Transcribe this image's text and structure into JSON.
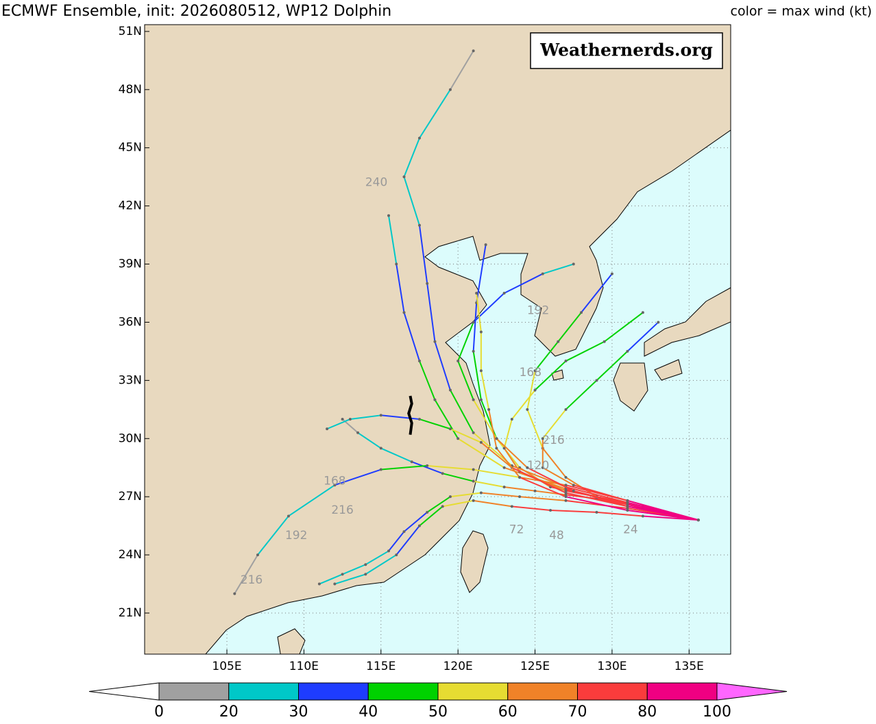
{
  "chart_data": {
    "type": "track-map",
    "title": "ECMWF Ensemble, init: 2026080512, WP12 Dolphin",
    "subtitle": "color = max wind (kt)",
    "watermark": "Weathernerds.org",
    "xlim": [
      99.66,
      137.7
    ],
    "ylim": [
      18.88,
      51.35
    ],
    "xticks": [
      {
        "value": 105,
        "label": "105E"
      },
      {
        "value": 110,
        "label": "110E"
      },
      {
        "value": 115,
        "label": "115E"
      },
      {
        "value": 120,
        "label": "120E"
      },
      {
        "value": 125,
        "label": "125E"
      },
      {
        "value": 130,
        "label": "130E"
      },
      {
        "value": 135,
        "label": "135E"
      }
    ],
    "yticks": [
      {
        "value": 21,
        "label": "21N"
      },
      {
        "value": 24,
        "label": "24N"
      },
      {
        "value": 27,
        "label": "27N"
      },
      {
        "value": 30,
        "label": "30N"
      },
      {
        "value": 33,
        "label": "33N"
      },
      {
        "value": 36,
        "label": "36N"
      },
      {
        "value": 39,
        "label": "39N"
      },
      {
        "value": 42,
        "label": "42N"
      },
      {
        "value": 45,
        "label": "45N"
      },
      {
        "value": 48,
        "label": "48N"
      },
      {
        "value": 51,
        "label": "51N"
      }
    ],
    "grid": true,
    "colorbar": {
      "ticks": [
        0,
        20,
        30,
        40,
        50,
        60,
        70,
        80,
        100
      ],
      "colors": [
        "#a0a0a0",
        "#00c8c8",
        "#1e3cff",
        "#00d200",
        "#e6dc32",
        "#f08228",
        "#fa3c3c",
        "#f00082"
      ],
      "under_color": "#ffffff",
      "over_color": "#ff66ff"
    },
    "observed": {
      "color": "#000000",
      "lon": [
        116.9,
        117.0,
        116.8,
        117.0,
        116.9
      ],
      "lat": [
        30.2,
        30.8,
        31.3,
        31.8,
        32.2
      ]
    },
    "tracks": [
      {
        "lon": [
          135.6,
          133,
          131,
          129,
          127,
          125,
          123,
          121,
          119,
          117,
          115,
          113.5,
          112.5
        ],
        "lat": [
          25.8,
          26.2,
          26.6,
          26.9,
          27.1,
          27.3,
          27.5,
          27.8,
          28.2,
          28.8,
          29.5,
          30.3,
          31.0
        ],
        "wind": [
          80,
          75,
          72,
          70,
          68,
          62,
          52,
          42,
          35,
          28,
          22,
          18,
          15
        ]
      },
      {
        "lon": [
          135.6,
          132,
          129,
          126,
          124,
          122.5,
          121.5,
          121,
          121.2,
          121.8
        ],
        "lat": [
          25.8,
          26.5,
          27,
          27.5,
          28.5,
          30,
          32,
          34.5,
          37,
          40
        ],
        "wind": [
          82,
          76,
          70,
          62,
          55,
          48,
          42,
          38,
          35,
          30
        ]
      },
      {
        "lon": [
          135.6,
          132,
          129,
          127,
          125.5,
          124.5,
          125,
          126.5,
          128,
          130
        ],
        "lat": [
          25.8,
          26.4,
          27,
          28,
          29.5,
          31.5,
          33.5,
          35,
          36.5,
          38.5
        ],
        "wind": [
          78,
          72,
          66,
          60,
          55,
          50,
          45,
          40,
          35,
          30
        ]
      },
      {
        "lon": [
          135.6,
          132,
          129,
          126,
          123.5,
          121,
          119,
          117.5,
          116,
          114,
          112
        ],
        "lat": [
          25.8,
          26,
          26.2,
          26.3,
          26.5,
          26.8,
          26.5,
          25.5,
          24,
          23,
          22.5
        ],
        "wind": [
          80,
          76,
          72,
          70,
          65,
          55,
          42,
          35,
          28,
          22,
          20
        ]
      },
      {
        "lon": [
          135.6,
          131,
          127,
          124,
          121,
          118,
          115,
          112,
          109,
          107,
          105.5
        ],
        "lat": [
          25.8,
          26.8,
          27.6,
          28,
          28.4,
          28.6,
          28.4,
          27.6,
          26,
          24,
          22
        ],
        "wind": [
          75,
          70,
          65,
          58,
          50,
          40,
          32,
          25,
          20,
          15,
          12
        ]
      },
      {
        "lon": [
          135.6,
          131,
          127,
          123,
          120,
          118.5,
          117.5,
          116.5,
          116,
          115.5
        ],
        "lat": [
          25.8,
          26.6,
          27.4,
          28.5,
          30,
          32,
          34,
          36.5,
          39,
          41.5
        ],
        "wind": [
          82,
          76,
          68,
          58,
          48,
          40,
          35,
          32,
          28,
          25
        ]
      },
      {
        "lon": [
          135.6,
          131,
          127,
          123.5,
          121,
          119.5,
          118.5,
          118,
          117.5,
          116.5,
          117.5,
          119.5,
          121
        ],
        "lat": [
          25.8,
          26.7,
          27.5,
          28.6,
          30.3,
          32.5,
          35,
          38,
          41,
          43.5,
          45.5,
          48,
          50
        ],
        "wind": [
          80,
          72,
          65,
          58,
          45,
          38,
          32,
          30,
          27,
          24,
          20,
          18,
          15
        ]
      },
      {
        "lon": [
          135.6,
          131,
          127,
          124,
          123,
          123.5,
          125,
          127,
          129.5,
          132
        ],
        "lat": [
          25.8,
          26.7,
          27.3,
          28.3,
          29.5,
          31,
          32.5,
          34,
          35,
          36.5
        ],
        "wind": [
          80,
          75,
          68,
          60,
          55,
          50,
          45,
          42,
          40,
          38
        ]
      },
      {
        "lon": [
          135.6,
          131,
          127,
          123.5,
          121.5,
          119.5,
          117.5,
          115,
          113,
          111.5
        ],
        "lat": [
          25.8,
          26.5,
          27.2,
          28.5,
          29.8,
          30.5,
          31,
          31.2,
          31,
          30.5
        ],
        "wind": [
          82,
          78,
          70,
          62,
          52,
          42,
          35,
          28,
          22,
          18
        ]
      },
      {
        "lon": [
          135.6,
          131,
          127,
          124,
          121.5,
          119.5,
          118,
          116.5,
          115.5,
          114,
          112.5,
          111
        ],
        "lat": [
          25.8,
          26.4,
          26.8,
          27,
          27.2,
          27,
          26.2,
          25.2,
          24.2,
          23.5,
          23,
          22.5
        ],
        "wind": [
          78,
          72,
          68,
          65,
          55,
          45,
          38,
          30,
          25,
          22,
          20,
          18
        ]
      },
      {
        "lon": [
          135.6,
          131,
          127.5,
          124.5,
          122.5,
          121,
          120,
          121,
          123,
          125.5,
          127.5
        ],
        "lat": [
          25.8,
          26.5,
          27.3,
          28.5,
          30,
          32,
          34,
          36,
          37.5,
          38.5,
          39
        ],
        "wind": [
          80,
          76,
          70,
          62,
          55,
          45,
          40,
          35,
          30,
          28,
          25
        ]
      },
      {
        "lon": [
          135.6,
          131,
          127,
          124,
          122.5,
          122,
          121.5,
          121.5,
          121.2
        ],
        "lat": [
          25.8,
          26.3,
          27,
          28,
          29.5,
          31.5,
          33.5,
          35.5,
          37.5
        ],
        "wind": [
          85,
          80,
          75,
          65,
          60,
          55,
          52,
          50,
          45
        ]
      },
      {
        "lon": [
          135.6,
          131,
          127.5,
          125.5,
          125.5,
          127,
          129,
          131,
          133
        ],
        "lat": [
          25.8,
          26.8,
          27.6,
          28.5,
          30,
          31.5,
          33,
          34.5,
          36
        ],
        "wind": [
          80,
          75,
          68,
          60,
          50,
          45,
          40,
          38,
          35
        ]
      }
    ],
    "hour_labels": [
      {
        "text": "240",
        "lon": 114.7,
        "lat": 43.2
      },
      {
        "text": "216",
        "lon": 106.6,
        "lat": 22.7
      },
      {
        "text": "192",
        "lon": 109.5,
        "lat": 25.0
      },
      {
        "text": "168",
        "lon": 124.7,
        "lat": 33.4
      },
      {
        "text": "120",
        "lon": 125.2,
        "lat": 28.6
      },
      {
        "text": "216",
        "lon": 126.2,
        "lat": 29.9
      },
      {
        "text": "48",
        "lon": 126.4,
        "lat": 25.0
      },
      {
        "text": "24",
        "lon": 131.2,
        "lat": 25.3
      },
      {
        "text": "72",
        "lon": 123.8,
        "lat": 25.3
      },
      {
        "text": "192",
        "lon": 125.2,
        "lat": 36.6
      },
      {
        "text": "216",
        "lon": 112.5,
        "lat": 26.3
      },
      {
        "text": "168",
        "lon": 112,
        "lat": 27.8
      }
    ]
  }
}
